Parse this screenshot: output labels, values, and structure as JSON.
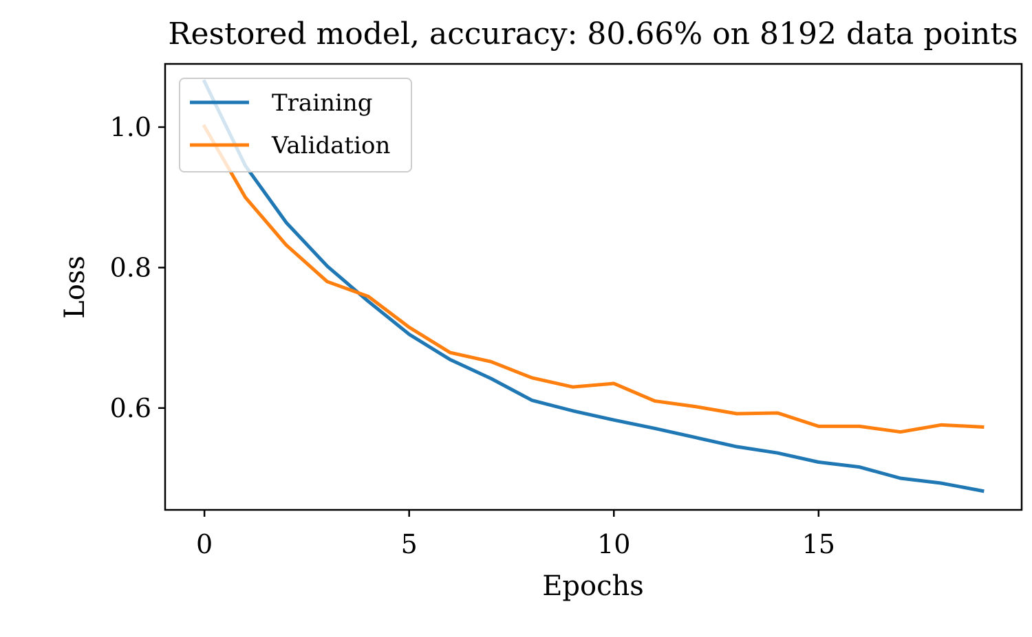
{
  "chart_data": {
    "type": "line",
    "title": "Restored model, accuracy: 80.66% on 8192 data points",
    "xlabel": "Epochs",
    "ylabel": "Loss",
    "xlim": [
      -0.96,
      19.96
    ],
    "ylim": [
      0.455,
      1.09
    ],
    "xticks": [
      0,
      5,
      10,
      15
    ],
    "xtick_labels": [
      "0",
      "5",
      "10",
      "15"
    ],
    "yticks": [
      0.6,
      0.8,
      1.0
    ],
    "ytick_labels": [
      "0.6",
      "0.8",
      "1.0"
    ],
    "grid": false,
    "legend_position": "upper left",
    "x": [
      0,
      1,
      2,
      3,
      4,
      5,
      6,
      7,
      8,
      9,
      10,
      11,
      12,
      13,
      14,
      15,
      16,
      17,
      18,
      19
    ],
    "series": [
      {
        "name": "Training",
        "color": "#1f77b4",
        "values": [
          1.065,
          0.945,
          0.864,
          0.802,
          0.752,
          0.705,
          0.669,
          0.642,
          0.611,
          0.596,
          0.583,
          0.571,
          0.558,
          0.545,
          0.536,
          0.523,
          0.516,
          0.5,
          0.493,
          0.482
        ]
      },
      {
        "name": "Validation",
        "color": "#ff7f0e",
        "values": [
          1.001,
          0.9,
          0.832,
          0.78,
          0.759,
          0.715,
          0.679,
          0.666,
          0.643,
          0.63,
          0.635,
          0.61,
          0.602,
          0.592,
          0.593,
          0.574,
          0.574,
          0.566,
          0.576,
          0.573
        ]
      }
    ]
  }
}
